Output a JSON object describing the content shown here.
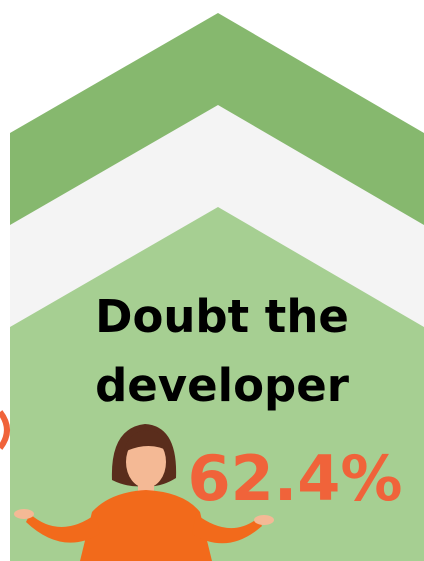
{
  "heading": {
    "line1": "Doubt the",
    "line2": "developer"
  },
  "stat": "62.4%"
}
